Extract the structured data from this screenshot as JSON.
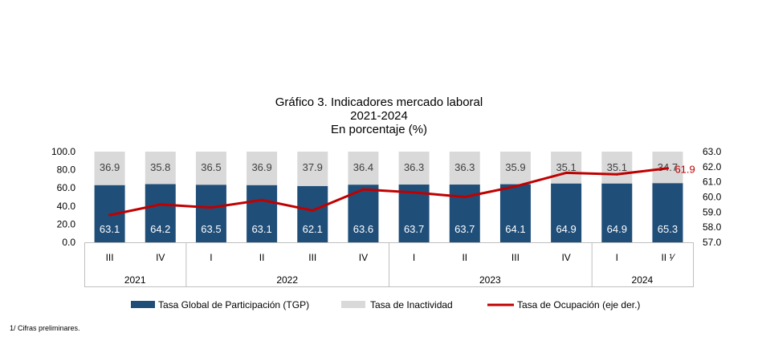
{
  "title": [
    "Gráfico 3. Indicadores mercado laboral",
    "2021-2024",
    "En porcentaje (%)"
  ],
  "footnote": "1/ Cifras preliminares.",
  "chart_data": {
    "type": "bar",
    "stacked": true,
    "categories": [
      "III",
      "IV",
      "I",
      "II",
      "III",
      "IV",
      "I",
      "II",
      "III",
      "IV",
      "I",
      "II ¹⁄"
    ],
    "year_groups": [
      {
        "label": "2021",
        "count": 2
      },
      {
        "label": "2022",
        "count": 4
      },
      {
        "label": "2023",
        "count": 4
      },
      {
        "label": "2024",
        "count": 2
      }
    ],
    "series": [
      {
        "name": "Tasa Global de Participación (TGP)",
        "type": "bar",
        "axis": "left",
        "color": "#1f4e79",
        "values": [
          63.1,
          64.2,
          63.5,
          63.1,
          62.1,
          63.6,
          63.7,
          63.7,
          64.1,
          64.9,
          64.9,
          65.3
        ]
      },
      {
        "name": "Tasa de Inactividad",
        "type": "bar",
        "axis": "left",
        "color": "#d9d9d9",
        "values": [
          36.9,
          35.8,
          36.5,
          36.9,
          37.9,
          36.4,
          36.3,
          36.3,
          35.9,
          35.1,
          35.1,
          34.7
        ]
      },
      {
        "name": "Tasa de Ocupación (eje der.)",
        "type": "line",
        "axis": "right",
        "color": "#c00000",
        "values": [
          58.8,
          59.5,
          59.3,
          59.8,
          59.1,
          60.5,
          60.3,
          60.0,
          60.7,
          61.6,
          61.5,
          61.9
        ],
        "last_label": "61.9"
      }
    ],
    "left_axis": {
      "ticks": [
        "0.0",
        "20.0",
        "40.0",
        "60.0",
        "80.0",
        "100.0"
      ],
      "ylim": [
        0,
        100
      ]
    },
    "right_axis": {
      "ticks": [
        "57.0",
        "58.0",
        "59.0",
        "60.0",
        "61.0",
        "62.0",
        "63.0"
      ],
      "ylim": [
        57,
        63
      ]
    },
    "legend_position": "bottom"
  }
}
